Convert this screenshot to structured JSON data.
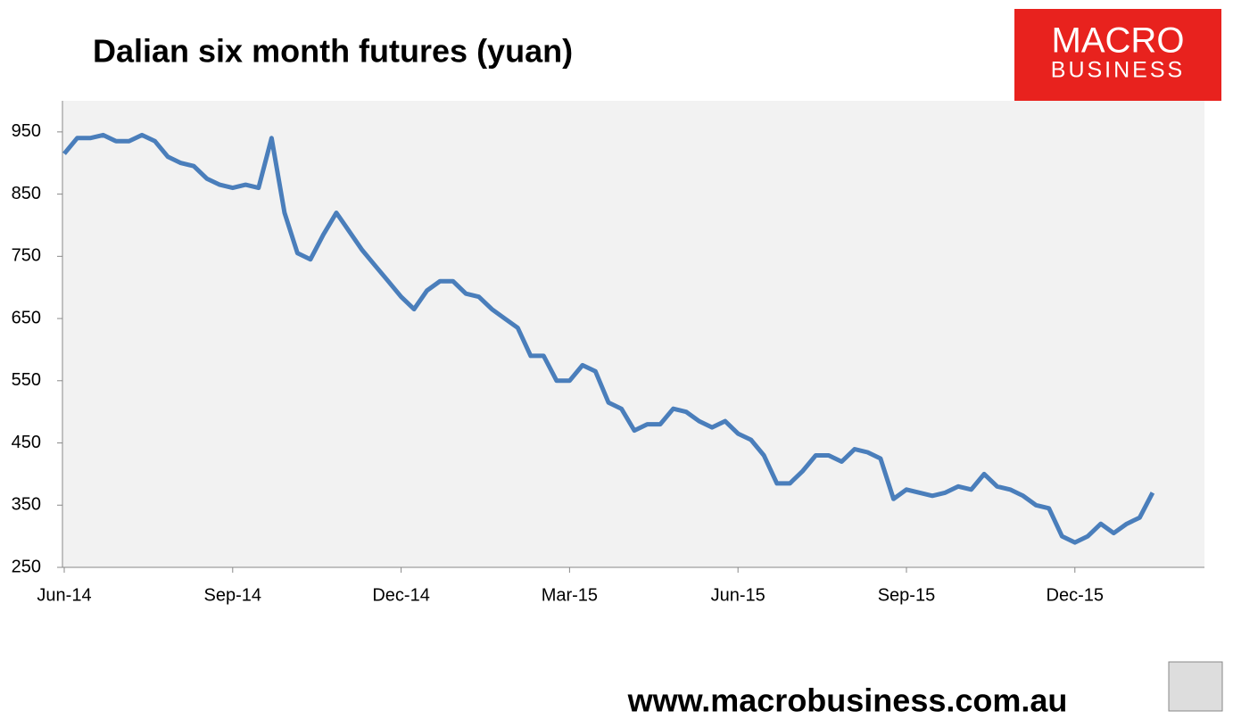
{
  "chart_data": {
    "type": "line",
    "title": "Dalian six month futures (yuan)",
    "categories": [
      "Jun-14",
      null,
      null,
      null,
      null,
      null,
      null,
      null,
      null,
      null,
      null,
      null,
      null,
      "Sep-14",
      null,
      null,
      null,
      null,
      null,
      null,
      null,
      null,
      null,
      null,
      null,
      null,
      "Dec-14",
      null,
      null,
      null,
      null,
      null,
      null,
      null,
      null,
      null,
      null,
      null,
      null,
      "Mar-15",
      null,
      null,
      null,
      null,
      null,
      null,
      null,
      null,
      null,
      null,
      null,
      null,
      "Jun-15",
      null,
      null,
      null,
      null,
      null,
      null,
      null,
      null,
      null,
      null,
      null,
      null,
      "Sep-15",
      null,
      null,
      null,
      null,
      null,
      null,
      null,
      null,
      null,
      null,
      null,
      null,
      "Dec-15",
      null,
      null,
      null,
      null,
      null,
      null
    ],
    "values": [
      915,
      940,
      940,
      945,
      935,
      935,
      945,
      935,
      910,
      900,
      895,
      875,
      865,
      860,
      865,
      860,
      940,
      820,
      755,
      745,
      785,
      820,
      790,
      760,
      735,
      710,
      685,
      665,
      695,
      710,
      710,
      690,
      685,
      665,
      650,
      635,
      590,
      590,
      550,
      550,
      575,
      565,
      515,
      505,
      470,
      480,
      480,
      505,
      500,
      485,
      475,
      485,
      465,
      455,
      430,
      385,
      385,
      405,
      430,
      430,
      420,
      440,
      435,
      425,
      360,
      375,
      370,
      365,
      370,
      380,
      375,
      400,
      380,
      375,
      365,
      350,
      345,
      300,
      290,
      300,
      320,
      305,
      320,
      330,
      370
    ],
    "color": "#4a7ebb",
    "ylim": [
      250,
      1000
    ],
    "yticks": [
      250,
      350,
      450,
      550,
      650,
      750,
      850,
      950
    ],
    "grid": false
  },
  "logo": {
    "line1": "MACRO",
    "line2": "BUSINESS"
  },
  "footer": "www.macrobusiness.com.au"
}
